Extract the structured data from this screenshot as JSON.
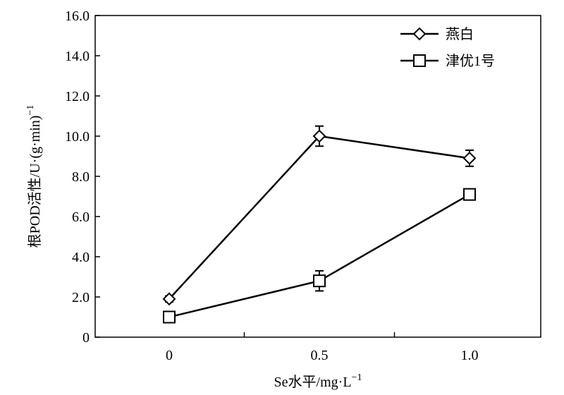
{
  "chart_data": {
    "type": "line",
    "categories": [
      "0",
      "0.5",
      "1.0"
    ],
    "x": [
      0,
      0.5,
      1.0
    ],
    "ylim": [
      0,
      16
    ],
    "yticks": [
      "0",
      "2.0",
      "4.0",
      "6.0",
      "8.0",
      "10.0",
      "12.0",
      "14.0",
      "16.0"
    ],
    "ylabel": "根POD活性/U·(g·min)",
    "ylabel_sup": "−1",
    "xlabel": "Se水平/mg·L",
    "xlabel_sup": "−1",
    "legend_position": "top-right",
    "series": [
      {
        "name": "燕白",
        "marker": "diamond",
        "values": [
          1.9,
          10.0,
          8.9
        ],
        "errors": [
          0.15,
          0.5,
          0.4
        ]
      },
      {
        "name": "津优1号",
        "marker": "square",
        "values": [
          1.0,
          2.8,
          7.1
        ],
        "errors": [
          0.1,
          0.5,
          0.2
        ]
      }
    ]
  }
}
